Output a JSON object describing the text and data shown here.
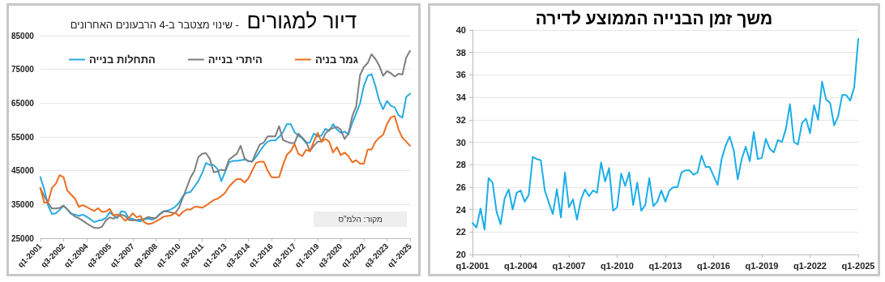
{
  "chart_data": [
    {
      "type": "line",
      "title": "דיור למגורים",
      "subtitle": "- שינוי מצטבר ב-4 הרבעונים האחרונים",
      "categories": [
        "q1-2001",
        null,
        null,
        null,
        null,
        null,
        "q3-2002",
        null,
        null,
        null,
        null,
        null,
        "q1-2004",
        null,
        null,
        null,
        null,
        null,
        "q3-2005",
        null,
        null,
        null,
        null,
        null,
        "q1-2007",
        null,
        null,
        null,
        null,
        null,
        "q3-2008",
        null,
        null,
        null,
        null,
        null,
        "q1-2010",
        null,
        null,
        null,
        null,
        null,
        "q3-2011",
        null,
        null,
        null,
        null,
        null,
        "q1-2013",
        null,
        null,
        null,
        null,
        null,
        "q3-2014",
        null,
        null,
        null,
        null,
        null,
        "q1-2016",
        null,
        null,
        null,
        null,
        null,
        "q3-2017",
        null,
        null,
        null,
        null,
        null,
        "q1-2019",
        null,
        null,
        null,
        null,
        null,
        "q3-2020",
        null,
        null,
        null,
        null,
        null,
        "q1-2022",
        null,
        null,
        null,
        null,
        null,
        "q3-2023",
        null,
        null,
        null,
        null,
        null,
        "q1-2025"
      ],
      "series": [
        {
          "name": "התחלות בנייה",
          "color": "#29abe2",
          "values": [
            43100,
            39500,
            34700,
            32200,
            32400,
            33400,
            34700,
            33500,
            32200,
            32000,
            31600,
            32000,
            31400,
            30600,
            29800,
            30200,
            30400,
            31000,
            32700,
            31700,
            31000,
            33000,
            32800,
            30800,
            30800,
            30200,
            30000,
            30600,
            30800,
            30500,
            31000,
            32200,
            33000,
            33200,
            33600,
            34300,
            35500,
            37500,
            38500,
            38700,
            40300,
            41900,
            44300,
            47300,
            46700,
            46700,
            45500,
            41900,
            44700,
            47500,
            47900,
            47900,
            48100,
            48300,
            47900,
            47700,
            49100,
            50800,
            52400,
            53600,
            54000,
            54000,
            55000,
            56400,
            58800,
            58800,
            56400,
            55400,
            54600,
            53200,
            53400,
            56000,
            55200,
            55400,
            57400,
            56800,
            58800,
            57200,
            56200,
            56600,
            55800,
            59200,
            62000,
            64900,
            70100,
            73100,
            73600,
            70100,
            65700,
            63200,
            65700,
            64200,
            63800,
            61400,
            60700,
            66900,
            67800
          ]
        },
        {
          "name": "היתרי בנייה",
          "color": "#7f7f7f",
          "values": [
            39800,
            37500,
            35500,
            33800,
            33800,
            34000,
            34600,
            33600,
            32400,
            31400,
            30900,
            30200,
            29400,
            28700,
            28100,
            28000,
            28400,
            30200,
            31200,
            30800,
            31400,
            32000,
            31600,
            30400,
            30300,
            30400,
            30600,
            30700,
            31300,
            31000,
            31000,
            32000,
            32900,
            32900,
            32600,
            32400,
            34000,
            37000,
            40000,
            43000,
            45000,
            49000,
            50000,
            50200,
            48500,
            44500,
            44800,
            45300,
            45100,
            48300,
            49200,
            50000,
            52400,
            48700,
            47800,
            47700,
            50400,
            52800,
            53300,
            55200,
            55200,
            55200,
            58200,
            54100,
            53600,
            53200,
            53200,
            56000,
            54800,
            53600,
            50800,
            52400,
            53600,
            53600,
            56000,
            57200,
            57600,
            58000,
            57200,
            54400,
            56000,
            61200,
            64000,
            73300,
            75700,
            76900,
            79500,
            78100,
            76100,
            73100,
            74500,
            73900,
            72900,
            73700,
            73500,
            78500,
            80500
          ]
        },
        {
          "name": "גמר בניה",
          "color": "#ed6d1f",
          "values": [
            39900,
            35500,
            35600,
            39900,
            41100,
            43700,
            43100,
            39100,
            37900,
            36700,
            34300,
            34800,
            34300,
            33600,
            33100,
            33900,
            32800,
            32900,
            33700,
            31800,
            32000,
            31400,
            30200,
            31000,
            32400,
            31200,
            31600,
            29700,
            29200,
            29400,
            30000,
            30600,
            31400,
            31600,
            31800,
            32600,
            31600,
            32800,
            33500,
            33500,
            34300,
            34300,
            34000,
            34700,
            35500,
            36300,
            36700,
            37500,
            38500,
            40300,
            41500,
            42500,
            42500,
            41500,
            42700,
            45000,
            47300,
            47700,
            47700,
            45100,
            43100,
            43000,
            43100,
            46700,
            49700,
            50800,
            52900,
            50000,
            49300,
            51200,
            50800,
            53600,
            56200,
            53600,
            54400,
            53600,
            50400,
            52000,
            49600,
            50400,
            49300,
            47500,
            48100,
            47100,
            47100,
            51300,
            51300,
            53600,
            54800,
            55600,
            58800,
            60800,
            61200,
            57200,
            54800,
            53600,
            52400
          ]
        }
      ],
      "ylim": [
        25000,
        85000
      ],
      "yticks": [
        25000,
        35000,
        45000,
        55000,
        65000,
        75000,
        85000
      ],
      "grid": "y",
      "legend": "top",
      "marker": "none",
      "annotations": [
        "מקור: הלמ\"ס"
      ]
    },
    {
      "type": "line",
      "title": "משך זמן הבנייה הממוצע לדירה",
      "categories": [
        "q1-2001",
        null,
        null,
        null,
        null,
        null,
        null,
        null,
        null,
        null,
        null,
        null,
        "q1-2004",
        null,
        null,
        null,
        null,
        null,
        null,
        null,
        null,
        null,
        null,
        null,
        "q1-2007",
        null,
        null,
        null,
        null,
        null,
        null,
        null,
        null,
        null,
        null,
        null,
        "q1-2010",
        null,
        null,
        null,
        null,
        null,
        null,
        null,
        null,
        null,
        null,
        null,
        "q1-2013",
        null,
        null,
        null,
        null,
        null,
        null,
        null,
        null,
        null,
        null,
        null,
        "q1-2016",
        null,
        null,
        null,
        null,
        null,
        null,
        null,
        null,
        null,
        null,
        null,
        "q1-2019",
        null,
        null,
        null,
        null,
        null,
        null,
        null,
        null,
        null,
        null,
        null,
        "q1-2022",
        null,
        null,
        null,
        null,
        null,
        null,
        null,
        null,
        null,
        null,
        null,
        "q1-2025"
      ],
      "series": [
        {
          "color": "#1aaee8",
          "values": [
            22.8,
            22.4,
            24.1,
            22.2,
            26.8,
            26.4,
            23.8,
            22.7,
            25.0,
            25.8,
            24.0,
            25.5,
            25.7,
            24.7,
            25.3,
            28.7,
            28.5,
            28.4,
            25.7,
            24.6,
            23.6,
            25.8,
            23.3,
            27.3,
            24.2,
            24.9,
            23.1,
            24.9,
            25.8,
            25.2,
            25.7,
            25.5,
            28.2,
            26.5,
            27.7,
            23.9,
            24.2,
            27.2,
            26.1,
            27.3,
            24.4,
            26.4,
            23.9,
            24.4,
            26.8,
            24.3,
            24.7,
            25.7,
            24.7,
            25.7,
            26.0,
            26.0,
            27.3,
            27.5,
            27.5,
            27.1,
            27.3,
            28.8,
            27.8,
            27.8,
            27.0,
            26.2,
            28.5,
            29.7,
            30.5,
            29.3,
            26.7,
            28.5,
            29.6,
            28.3,
            30.9,
            28.5,
            28.6,
            30.3,
            29.4,
            29.1,
            30.2,
            30.0,
            31.2,
            33.4,
            30.0,
            29.8,
            31.7,
            32.1,
            30.8,
            33.3,
            32.0,
            35.4,
            33.8,
            33.5,
            31.5,
            32.3,
            34.2,
            34.2,
            33.7,
            34.9,
            39.2
          ]
        }
      ],
      "ylim": [
        20,
        40
      ],
      "yticks": [
        20,
        22,
        24,
        26,
        28,
        30,
        32,
        34,
        36,
        38,
        40
      ],
      "grid": "y",
      "marker": "none"
    }
  ]
}
